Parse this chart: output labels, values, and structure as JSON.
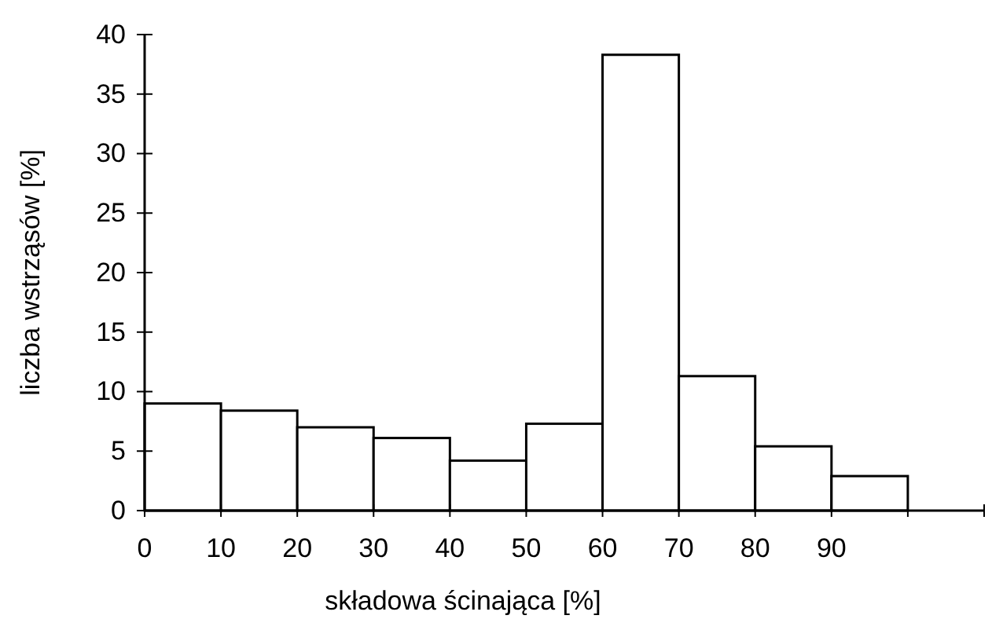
{
  "chart_data": {
    "type": "histogram",
    "xlabel": "składowa ścinająca [%]",
    "ylabel": "liczba wstrząsów [%]",
    "bins": [
      0,
      10,
      20,
      30,
      40,
      50,
      60,
      70,
      80,
      90,
      100
    ],
    "values": [
      9.0,
      8.4,
      7.0,
      6.1,
      4.2,
      7.3,
      38.3,
      11.3,
      5.4,
      2.9
    ],
    "color": "#ffffff",
    "xlim": [
      0,
      110
    ],
    "xticks": [
      0,
      10,
      20,
      30,
      40,
      50,
      60,
      70,
      80,
      90,
      {
        "value": 100,
        "label": null
      },
      {
        "value": 110,
        "label": null
      }
    ],
    "ylim": [
      0,
      40
    ],
    "yticks": [
      0,
      5,
      10,
      15,
      20,
      25,
      30,
      35,
      40
    ],
    "grid": false
  }
}
